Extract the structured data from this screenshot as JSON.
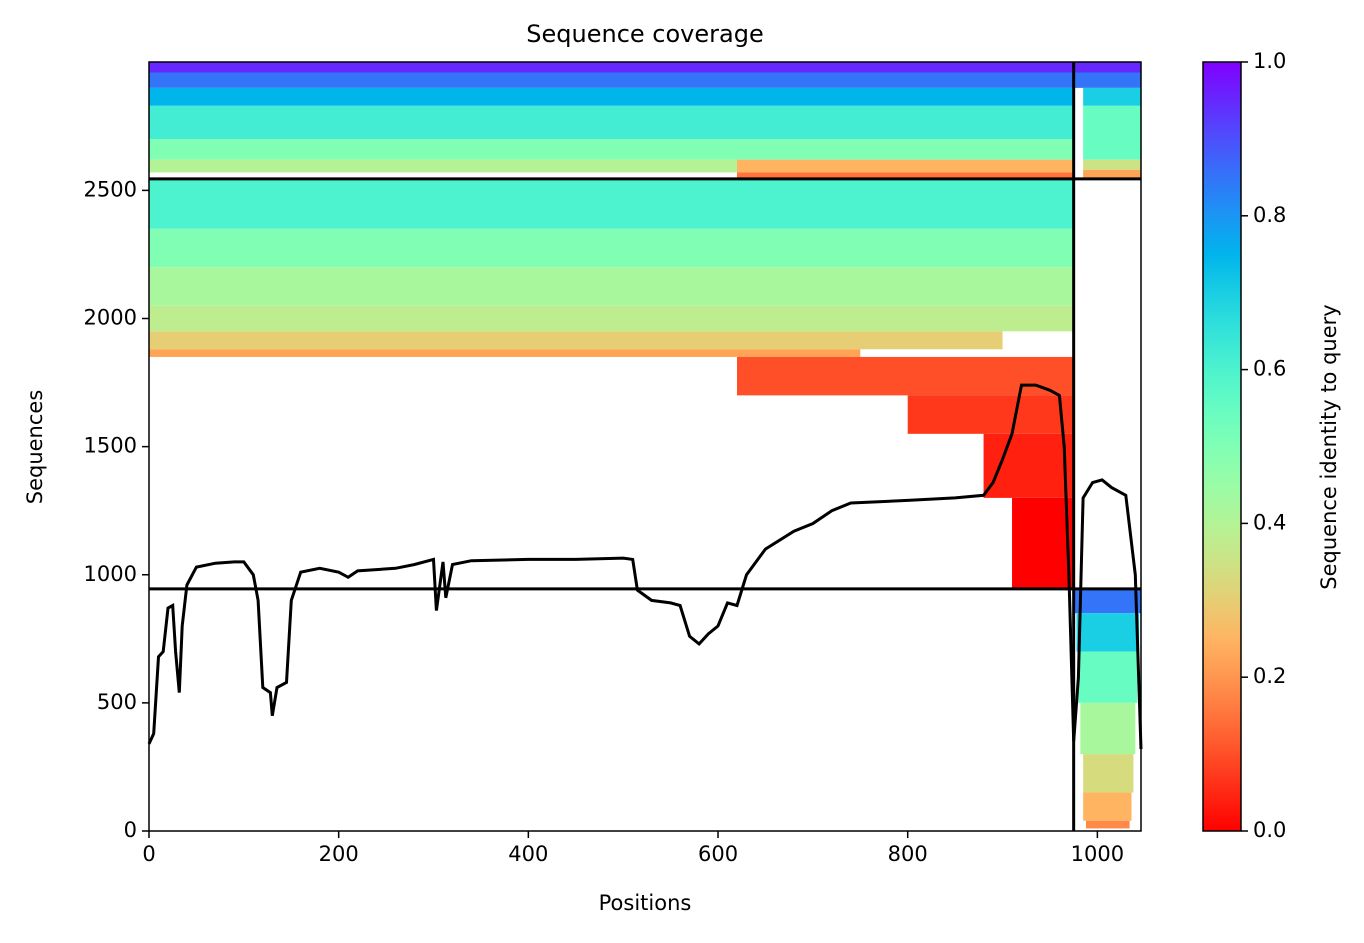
{
  "chart_data": {
    "type": "coverage",
    "title": "Sequence coverage",
    "x_label": "Positions",
    "y_label": "Sequences",
    "colorbar_label": "Sequence identity to query",
    "colormap": "rainbow_r",
    "xlim": [
      0,
      1046
    ],
    "xticks": [
      0,
      200,
      400,
      600,
      800,
      1000
    ],
    "ylim": [
      0,
      3001
    ],
    "yticks": [
      0,
      500,
      1000,
      1500,
      2000,
      2500
    ],
    "clim": [
      0,
      1
    ],
    "cticks": [
      {
        "value": 0,
        "label": "0.0"
      },
      0.2,
      0.4,
      0.6,
      0.8,
      {
        "value": 1,
        "label": "1.0"
      }
    ],
    "boundaries": {
      "x": [
        975
      ],
      "y": [
        945,
        2545
      ],
      "color": "#000000"
    },
    "line_color": "#000000",
    "segments": [
      {
        "x": [
          0,
          1046
        ],
        "y": [
          2960,
          3001
        ],
        "identity": 0.95
      },
      {
        "x": [
          0,
          1046
        ],
        "y": [
          2900,
          2960
        ],
        "identity": 0.85
      },
      {
        "x": [
          0,
          975
        ],
        "y": [
          2830,
          2900
        ],
        "identity": 0.75
      },
      {
        "x": [
          0,
          975
        ],
        "y": [
          2700,
          2830
        ],
        "identity": 0.62
      },
      {
        "x": [
          0,
          975
        ],
        "y": [
          2620,
          2700
        ],
        "identity": 0.5
      },
      {
        "x": [
          0,
          620
        ],
        "y": [
          2570,
          2620
        ],
        "identity": 0.4
      },
      {
        "x": [
          620,
          975
        ],
        "y": [
          2570,
          2620
        ],
        "identity": 0.25
      },
      {
        "x": [
          620,
          975
        ],
        "y": [
          2545,
          2570
        ],
        "identity": 0.15
      },
      {
        "x": [
          985,
          1046
        ],
        "y": [
          2830,
          2900
        ],
        "identity": 0.7
      },
      {
        "x": [
          985,
          1046
        ],
        "y": [
          2620,
          2830
        ],
        "identity": 0.55
      },
      {
        "x": [
          985,
          1046
        ],
        "y": [
          2580,
          2620
        ],
        "identity": 0.35
      },
      {
        "x": [
          985,
          1046
        ],
        "y": [
          2545,
          2580
        ],
        "identity": 0.22
      },
      {
        "x": [
          0,
          975
        ],
        "y": [
          2350,
          2545
        ],
        "identity": 0.6
      },
      {
        "x": [
          0,
          975
        ],
        "y": [
          2200,
          2350
        ],
        "identity": 0.5
      },
      {
        "x": [
          0,
          975
        ],
        "y": [
          2050,
          2200
        ],
        "identity": 0.42
      },
      {
        "x": [
          0,
          975
        ],
        "y": [
          1950,
          2050
        ],
        "identity": 0.38
      },
      {
        "x": [
          0,
          900
        ],
        "y": [
          1880,
          1950
        ],
        "identity": 0.3
      },
      {
        "x": [
          0,
          750
        ],
        "y": [
          1850,
          1880
        ],
        "identity": 0.22
      },
      {
        "x": [
          620,
          975
        ],
        "y": [
          1700,
          1850
        ],
        "identity": 0.1
      },
      {
        "x": [
          800,
          975
        ],
        "y": [
          1550,
          1700
        ],
        "identity": 0.07
      },
      {
        "x": [
          880,
          975
        ],
        "y": [
          1300,
          1550
        ],
        "identity": 0.04
      },
      {
        "x": [
          910,
          975
        ],
        "y": [
          950,
          1300
        ],
        "identity": 0
      },
      {
        "x": [
          975,
          1046
        ],
        "y": [
          850,
          945
        ],
        "identity": 0.85
      },
      {
        "x": [
          978,
          1044
        ],
        "y": [
          700,
          850
        ],
        "identity": 0.7
      },
      {
        "x": [
          980,
          1042
        ],
        "y": [
          500,
          700
        ],
        "identity": 0.55
      },
      {
        "x": [
          982,
          1040
        ],
        "y": [
          300,
          500
        ],
        "identity": 0.42
      },
      {
        "x": [
          985,
          1038
        ],
        "y": [
          150,
          300
        ],
        "identity": 0.33
      },
      {
        "x": [
          985,
          1036
        ],
        "y": [
          40,
          150
        ],
        "identity": 0.25
      },
      {
        "x": [
          988,
          1034
        ],
        "y": [
          10,
          40
        ],
        "identity": 0.18
      }
    ],
    "coverage": {
      "x": [
        0,
        5,
        10,
        15,
        20,
        25,
        28,
        32,
        35,
        40,
        50,
        70,
        90,
        100,
        110,
        115,
        120,
        128,
        130,
        135,
        145,
        150,
        160,
        180,
        200,
        210,
        220,
        260,
        280,
        300,
        303,
        310,
        313,
        320,
        340,
        400,
        450,
        500,
        510,
        515,
        530,
        550,
        560,
        570,
        580,
        590,
        600,
        610,
        620,
        630,
        650,
        680,
        700,
        720,
        740,
        800,
        850,
        880,
        890,
        900,
        910,
        920,
        935,
        950,
        960,
        965,
        970,
        975,
        980,
        985,
        995,
        1005,
        1015,
        1030,
        1040,
        1046
      ],
      "y": [
        340,
        380,
        680,
        700,
        870,
        880,
        700,
        540,
        800,
        960,
        1030,
        1045,
        1050,
        1050,
        1000,
        900,
        560,
        540,
        450,
        560,
        580,
        900,
        1010,
        1025,
        1010,
        990,
        1015,
        1025,
        1040,
        1060,
        860,
        1050,
        910,
        1040,
        1055,
        1060,
        1060,
        1065,
        1060,
        940,
        900,
        890,
        880,
        760,
        730,
        770,
        800,
        890,
        880,
        1000,
        1100,
        1170,
        1200,
        1250,
        1280,
        1290,
        1300,
        1310,
        1360,
        1450,
        1550,
        1740,
        1740,
        1720,
        1700,
        1500,
        1000,
        350,
        600,
        1300,
        1360,
        1370,
        1340,
        1310,
        1000,
        320
      ]
    }
  }
}
